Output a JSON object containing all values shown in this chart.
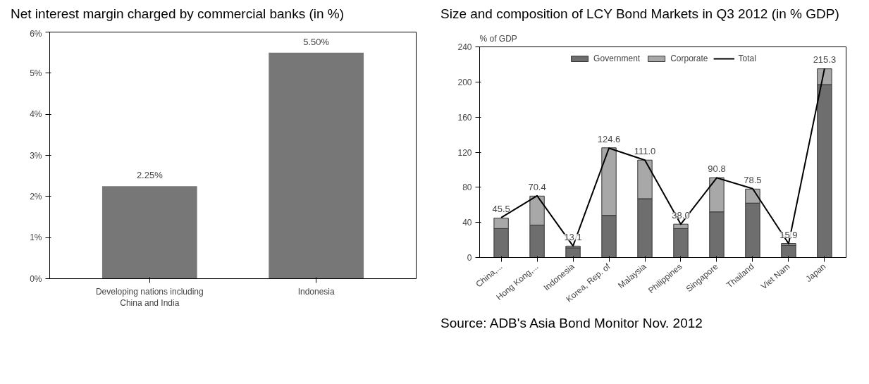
{
  "chart_data": [
    {
      "type": "bar",
      "title": "Net interest margin charged by commercial banks (in %)",
      "categories": [
        "Developing nations including China and India",
        "Indonesia"
      ],
      "values": [
        2.25,
        5.5
      ],
      "color": "#777777",
      "value_labels": [
        "2.25%",
        "5.50%"
      ],
      "ylim": [
        0,
        6
      ],
      "yticks": [
        {
          "value": 0,
          "label": "0%"
        },
        {
          "value": 1,
          "label": "1%"
        },
        {
          "value": 2,
          "label": "2%"
        },
        {
          "value": 3,
          "label": "3%"
        },
        {
          "value": 4,
          "label": "4%"
        },
        {
          "value": 5,
          "label": "5%"
        },
        {
          "value": 6,
          "label": "6%"
        }
      ],
      "grid": false,
      "legend": false
    },
    {
      "type": "bar",
      "title": "Size and composition of LCY Bond Markets in Q3 2012 (in % GDP)",
      "ylabel": "% of GDP",
      "categories": [
        "China,...",
        "Hong Kong,...",
        "Indonesia",
        "Korea, Rep. of",
        "Malaysia",
        "Philippines",
        "Singapore",
        "Thailand",
        "Viet Nam",
        "Japan"
      ],
      "stacked": true,
      "series": [
        {
          "name": "Government",
          "color": "#6e6e6e",
          "values": [
            33,
            37,
            11,
            48,
            67,
            33,
            52,
            62,
            14,
            197
          ]
        },
        {
          "name": "Corporate",
          "color": "#a8a8a8",
          "values": [
            12,
            33,
            2,
            77,
            44,
            5,
            39,
            16,
            2,
            18
          ]
        },
        {
          "name": "Total",
          "type": "line",
          "color": "#000000",
          "values": [
            45.5,
            70.4,
            13.1,
            124.6,
            111.0,
            38.0,
            90.8,
            78.5,
            15.9,
            215.3
          ],
          "value_labels": [
            "45.5",
            "70.4",
            "13.1",
            "124.6",
            "111.0",
            "38.0",
            "90.8",
            "78.5",
            "15.9",
            "215.3"
          ]
        }
      ],
      "ylim": [
        0,
        240
      ],
      "yticks": [
        0,
        40,
        80,
        120,
        160,
        200,
        240
      ],
      "grid": false,
      "legend": "top",
      "annotations": [
        "Source: ADB's Asia Bond Monitor Nov. 2012"
      ]
    }
  ]
}
